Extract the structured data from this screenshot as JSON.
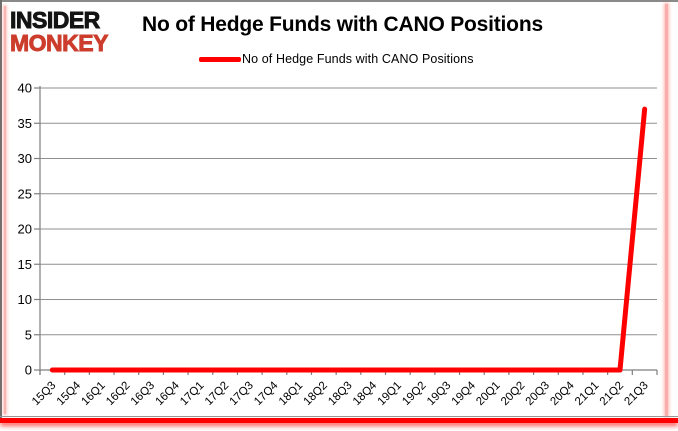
{
  "logo": {
    "line1": "INSIDER",
    "line2": "MONKEY"
  },
  "header": {
    "title": "No of Hedge Funds with CANO Positions"
  },
  "legend": {
    "label": "No of Hedge Funds with CANO Positions"
  },
  "colors": {
    "series_red": "#fe0000",
    "logo_black": "#141414",
    "logo_red": "#cc3d2c",
    "gridline_gray": "#8f8f8f",
    "axis_gray": "#7f7f7f",
    "tick_label": "#000000",
    "frame_glow_red": "#fe0000"
  },
  "chart_data": {
    "type": "line",
    "title": "No of Hedge Funds with CANO Positions",
    "xlabel": "",
    "ylabel": "",
    "categories": [
      "15Q3",
      "15Q4",
      "16Q1",
      "16Q2",
      "16Q3",
      "16Q4",
      "17Q1",
      "17Q2",
      "17Q3",
      "17Q4",
      "18Q1",
      "18Q2",
      "18Q3",
      "18Q4",
      "19Q1",
      "19Q2",
      "19Q3",
      "19Q4",
      "20Q1",
      "20Q2",
      "20Q3",
      "20Q4",
      "21Q1",
      "21Q2",
      "21Q3"
    ],
    "series": [
      {
        "name": "No of Hedge Funds with CANO Positions",
        "color": "#fe0000",
        "values": [
          0,
          0,
          0,
          0,
          0,
          0,
          0,
          0,
          0,
          0,
          0,
          0,
          0,
          0,
          0,
          0,
          0,
          0,
          0,
          0,
          0,
          0,
          0,
          0,
          37
        ]
      }
    ],
    "ylim": [
      0,
      40
    ],
    "yticks": [
      0,
      5,
      10,
      15,
      20,
      25,
      30,
      35,
      40
    ],
    "grid": true,
    "legend_position": "top"
  }
}
